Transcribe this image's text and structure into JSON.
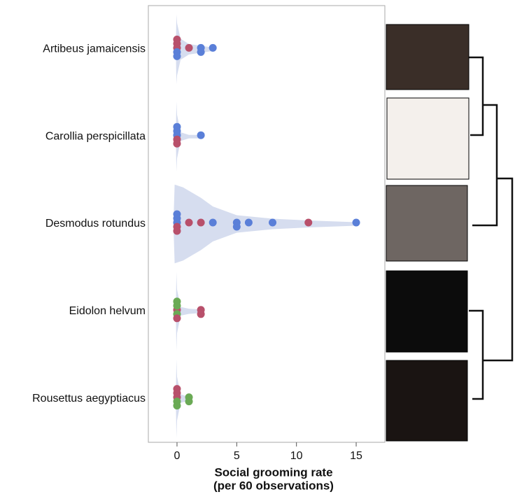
{
  "chart_data": {
    "type": "violin-strip",
    "xlabel": [
      "Social grooming rate",
      "(per 60 observations)"
    ],
    "xlim": [
      -2.4,
      17.4
    ],
    "xticks": [
      0,
      5,
      10,
      15
    ],
    "violin_color": "#d6ddef",
    "groups": [
      {
        "label": "Artibeus jamaicensis",
        "violin_x": [
          -0.1,
          -0.05,
          0,
          0.3,
          1,
          2,
          3,
          3.3
        ],
        "violin_w": [
          0,
          0.4,
          0.3,
          0.12,
          0.06,
          0.04,
          0.02,
          0
        ],
        "points": [
          {
            "x": 0,
            "color": "#b8506b"
          },
          {
            "x": 0,
            "color": "#5a7fd8"
          },
          {
            "x": 0,
            "color": "#b8506b"
          },
          {
            "x": 0,
            "color": "#5a7fd8"
          },
          {
            "x": 0,
            "color": "#b8506b"
          },
          {
            "x": 2,
            "color": "#5a7fd8"
          },
          {
            "x": 2,
            "color": "#5a7fd8"
          },
          {
            "x": 3,
            "color": "#5a7fd8"
          },
          {
            "x": 1,
            "color": "#b8506b"
          }
        ]
      },
      {
        "label": "Carollia perspicillata",
        "violin_x": [
          -0.1,
          -0.05,
          0,
          0.3,
          1,
          2,
          2.3
        ],
        "violin_w": [
          0,
          0.4,
          0.25,
          0.05,
          0.02,
          0.02,
          0
        ],
        "points": [
          {
            "x": 0,
            "color": "#5a7fd8"
          },
          {
            "x": 0,
            "color": "#b8506b"
          },
          {
            "x": 0,
            "color": "#5a7fd8"
          },
          {
            "x": 0,
            "color": "#b8506b"
          },
          {
            "x": 0,
            "color": "#5a7fd8"
          },
          {
            "x": 2,
            "color": "#5a7fd8"
          }
        ]
      },
      {
        "label": "Desmodus rotundus",
        "violin_x": [
          -0.3,
          -0.2,
          0.5,
          2,
          3,
          5,
          8,
          11,
          15,
          15.3
        ],
        "violin_w": [
          0,
          0.45,
          0.42,
          0.3,
          0.2,
          0.1,
          0.06,
          0.04,
          0.02,
          0
        ],
        "points": [
          {
            "x": 0,
            "color": "#5a7fd8"
          },
          {
            "x": 0,
            "color": "#b8506b"
          },
          {
            "x": 0,
            "color": "#5a7fd8"
          },
          {
            "x": 0,
            "color": "#b8506b"
          },
          {
            "x": 0,
            "color": "#5a7fd8"
          },
          {
            "x": 1,
            "color": "#b8506b"
          },
          {
            "x": 2,
            "color": "#b8506b"
          },
          {
            "x": 3,
            "color": "#5a7fd8"
          },
          {
            "x": 5,
            "color": "#5a7fd8"
          },
          {
            "x": 5,
            "color": "#5a7fd8"
          },
          {
            "x": 6,
            "color": "#5a7fd8"
          },
          {
            "x": 8,
            "color": "#5a7fd8"
          },
          {
            "x": 11,
            "color": "#b8506b"
          },
          {
            "x": 15,
            "color": "#5a7fd8"
          }
        ]
      },
      {
        "label": "Eidolon helvum",
        "violin_x": [
          -0.1,
          -0.05,
          0,
          0.3,
          1,
          2,
          2.3
        ],
        "violin_w": [
          0,
          0.45,
          0.25,
          0.05,
          0.03,
          0.02,
          0
        ],
        "points": [
          {
            "x": 0,
            "color": "#b8506b"
          },
          {
            "x": 0,
            "color": "#6aaa55"
          },
          {
            "x": 0,
            "color": "#6aaa55"
          },
          {
            "x": 0,
            "color": "#b8506b"
          },
          {
            "x": 0,
            "color": "#6aaa55"
          },
          {
            "x": 2,
            "color": "#b8506b"
          },
          {
            "x": 2,
            "color": "#b8506b"
          }
        ]
      },
      {
        "label": "Rousettus aegyptiacus",
        "violin_x": [
          -0.1,
          -0.05,
          0,
          0.3,
          1,
          1.3
        ],
        "violin_w": [
          0,
          0.45,
          0.25,
          0.05,
          0.02,
          0
        ],
        "points": [
          {
            "x": 0,
            "color": "#b8506b"
          },
          {
            "x": 0,
            "color": "#6aaa55"
          },
          {
            "x": 0,
            "color": "#b8506b"
          },
          {
            "x": 0,
            "color": "#6aaa55"
          },
          {
            "x": 0,
            "color": "#b8506b"
          },
          {
            "x": 1,
            "color": "#6aaa55"
          },
          {
            "x": 1,
            "color": "#6aaa55"
          }
        ]
      }
    ]
  }
}
